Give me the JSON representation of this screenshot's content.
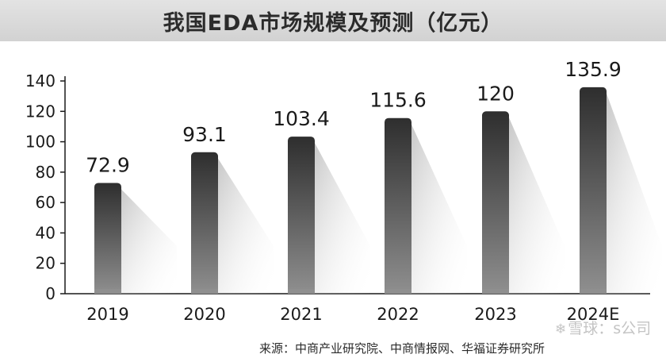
{
  "title": "我国EDA市场规模及预测（亿元）",
  "source": "来源：中商产业研究院、中商情报网、华福证券研究所",
  "watermark": {
    "icon": "snowball-icon",
    "text": "雪球：s公司"
  },
  "colors": {
    "bar_top": "#2e2e2e",
    "bar_bottom": "#8f8f8f",
    "axis": "#1a1a1a",
    "text": "#1a1a1a"
  },
  "chart_data": {
    "type": "bar",
    "title": "我国EDA市场规模及预测（亿元）",
    "categories": [
      "2019",
      "2020",
      "2021",
      "2022",
      "2023",
      "2024E"
    ],
    "values": [
      72.9,
      93.1,
      103.4,
      115.6,
      120,
      135.9
    ],
    "data_labels": [
      "72.9",
      "93.1",
      "103.4",
      "115.6",
      "120",
      "135.9"
    ],
    "yticks": [
      0,
      20,
      40,
      60,
      80,
      100,
      120,
      140
    ],
    "ylim": [
      0,
      140
    ],
    "xlabel": "",
    "ylabel": "",
    "grid": false,
    "legend": "none"
  }
}
